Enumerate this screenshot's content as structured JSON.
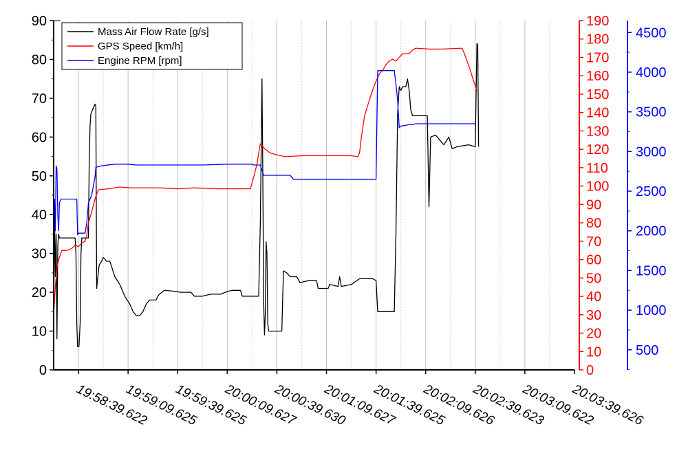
{
  "chart_data": {
    "type": "line",
    "title": "",
    "xlabel": "",
    "x_tick_labels": [
      "19:58:39.622",
      "19:59:09.625",
      "19:59:39.625",
      "20:00:09.627",
      "20:00:39.630",
      "20:01:09.627",
      "20:01:39.625",
      "20:02:09.626",
      "20:02:39.623",
      "20:03:09.622",
      "20:03:39.626"
    ],
    "x_range_seconds": [
      -15,
      300
    ],
    "grid": "vertical dashed lines at every 15 s",
    "legend_position": "top-left",
    "axes": [
      {
        "name": "left",
        "color": "#000000",
        "ylim": [
          0,
          90
        ],
        "ticks": [
          "0",
          "10",
          "20",
          "30",
          "40",
          "50",
          "60",
          "70",
          "80",
          "90"
        ]
      },
      {
        "name": "right-red",
        "color": "#ff0000",
        "ylim": [
          0,
          190
        ],
        "ticks": [
          "0",
          "10",
          "20",
          "30",
          "40",
          "50",
          "60",
          "70",
          "80",
          "90",
          "100",
          "110",
          "120",
          "130",
          "140",
          "150",
          "160",
          "170",
          "180",
          "190"
        ]
      },
      {
        "name": "right-blue",
        "color": "#0000ff",
        "ylim": [
          247,
          4650
        ],
        "ticks": [
          "500",
          "1000",
          "1500",
          "2000",
          "2500",
          "3000",
          "3500",
          "4000",
          "4500"
        ]
      }
    ],
    "series": [
      {
        "name": "Mass Air Flow Rate [g/s]",
        "color": "#000000",
        "axis": "left",
        "points": [
          [
            -15,
            10
          ],
          [
            -14.5,
            41
          ],
          [
            -14,
            24
          ],
          [
            -13.5,
            35
          ],
          [
            -13,
            8
          ],
          [
            -12.5,
            32
          ],
          [
            -12,
            35
          ],
          [
            -11.5,
            34
          ],
          [
            -5,
            34
          ],
          [
            -3,
            34
          ],
          [
            -2,
            34
          ],
          [
            -1.5,
            30
          ],
          [
            -1,
            12
          ],
          [
            -0.5,
            6
          ],
          [
            0.3,
            6
          ],
          [
            1,
            12
          ],
          [
            1.5,
            30
          ],
          [
            2,
            34
          ],
          [
            5,
            34
          ],
          [
            6,
            34
          ],
          [
            6.5,
            54
          ],
          [
            7,
            63
          ],
          [
            7.5,
            66
          ],
          [
            8.5,
            67
          ],
          [
            10,
            68.5
          ],
          [
            10.5,
            68
          ],
          [
            11,
            21
          ],
          [
            12.5,
            27
          ],
          [
            14,
            28
          ],
          [
            15,
            29
          ],
          [
            17,
            28
          ],
          [
            19,
            28
          ],
          [
            22,
            24
          ],
          [
            25,
            22
          ],
          [
            28,
            19
          ],
          [
            31,
            17
          ],
          [
            33,
            15
          ],
          [
            35,
            14
          ],
          [
            37,
            14
          ],
          [
            39,
            15
          ],
          [
            41,
            17
          ],
          [
            43,
            18
          ],
          [
            45,
            18
          ],
          [
            47,
            18
          ],
          [
            48,
            19
          ],
          [
            49,
            19.5
          ],
          [
            52,
            20.5
          ],
          [
            57,
            20.3
          ],
          [
            62,
            20
          ],
          [
            68,
            20
          ],
          [
            70,
            19
          ],
          [
            75,
            19
          ],
          [
            80,
            19.5
          ],
          [
            86,
            19.5
          ],
          [
            90,
            20.2
          ],
          [
            93,
            20.5
          ],
          [
            98,
            20.5
          ],
          [
            99,
            19
          ],
          [
            109,
            19
          ],
          [
            110,
            38
          ],
          [
            111,
            75
          ],
          [
            111.5,
            50
          ],
          [
            112,
            18
          ],
          [
            112.5,
            9
          ],
          [
            113,
            14
          ],
          [
            113.5,
            33
          ],
          [
            114,
            30
          ],
          [
            114.5,
            12
          ],
          [
            115,
            10
          ],
          [
            123,
            10
          ],
          [
            124,
            25.5
          ],
          [
            126,
            25
          ],
          [
            128,
            24
          ],
          [
            132,
            24
          ],
          [
            134,
            22.5
          ],
          [
            139,
            23
          ],
          [
            144,
            23
          ],
          [
            145,
            21
          ],
          [
            151,
            21
          ],
          [
            152,
            22
          ],
          [
            157,
            21.5
          ],
          [
            158,
            24
          ],
          [
            159,
            21.5
          ],
          [
            165,
            22
          ],
          [
            170,
            23.5
          ],
          [
            178,
            23.5
          ],
          [
            180,
            23
          ],
          [
            181,
            15
          ],
          [
            191,
            15
          ],
          [
            192,
            35
          ],
          [
            193,
            66
          ],
          [
            194,
            73
          ],
          [
            195,
            72
          ],
          [
            196,
            73
          ],
          [
            198,
            73
          ],
          [
            199,
            75
          ],
          [
            200,
            72
          ],
          [
            201,
            67
          ],
          [
            202,
            65.5
          ],
          [
            211,
            65.5
          ],
          [
            212,
            42
          ],
          [
            213,
            60
          ],
          [
            216,
            60.5
          ],
          [
            221,
            58
          ],
          [
            224,
            60
          ],
          [
            226,
            57
          ],
          [
            229,
            57.5
          ],
          [
            236,
            58
          ],
          [
            240,
            57.5
          ],
          [
            241,
            84
          ],
          [
            241.5,
            84
          ],
          [
            242,
            57.5
          ]
        ]
      },
      {
        "name": "GPS Speed [km/h]",
        "color": "#ff0000",
        "axis": "right-red",
        "points": [
          [
            -15,
            30
          ],
          [
            -14,
            45
          ],
          [
            -13,
            55
          ],
          [
            -12,
            60
          ],
          [
            -10,
            65
          ],
          [
            -7,
            65
          ],
          [
            -4,
            66
          ],
          [
            -2,
            68
          ],
          [
            0,
            67
          ],
          [
            2,
            69
          ],
          [
            4,
            70
          ],
          [
            5,
            73
          ],
          [
            6,
            80
          ],
          [
            8,
            86
          ],
          [
            10,
            93
          ],
          [
            12,
            98
          ],
          [
            18,
            98.5
          ],
          [
            25,
            99.5
          ],
          [
            32,
            99
          ],
          [
            40,
            99
          ],
          [
            50,
            99
          ],
          [
            60,
            98.5
          ],
          [
            70,
            99
          ],
          [
            85,
            98.5
          ],
          [
            100,
            98.5
          ],
          [
            104,
            98.5
          ],
          [
            106,
            105
          ],
          [
            108,
            112
          ],
          [
            109,
            118
          ],
          [
            110,
            123
          ],
          [
            111,
            122
          ],
          [
            113,
            120
          ],
          [
            116,
            118
          ],
          [
            120,
            117
          ],
          [
            125,
            116
          ],
          [
            135,
            116.5
          ],
          [
            145,
            116.5
          ],
          [
            155,
            116.5
          ],
          [
            165,
            116.5
          ],
          [
            169,
            116
          ],
          [
            170,
            118
          ],
          [
            171,
            126
          ],
          [
            173,
            138
          ],
          [
            176,
            147
          ],
          [
            179,
            155
          ],
          [
            182,
            161
          ],
          [
            184,
            163
          ],
          [
            186,
            166
          ],
          [
            188,
            168
          ],
          [
            190,
            169
          ],
          [
            192,
            168
          ],
          [
            194,
            170
          ],
          [
            196,
            172
          ],
          [
            198,
            172
          ],
          [
            200,
            172
          ],
          [
            202,
            174
          ],
          [
            204,
            175
          ],
          [
            212,
            174.5
          ],
          [
            220,
            174.5
          ],
          [
            232,
            175
          ],
          [
            233,
            173
          ],
          [
            235,
            168
          ],
          [
            237,
            163
          ],
          [
            239,
            157
          ],
          [
            241,
            152
          ]
        ]
      },
      {
        "name": "Engine RPM [rpm]",
        "color": "#0000ff",
        "axis": "right-blue",
        "points": [
          [
            -15,
            2180
          ],
          [
            -14.5,
            2400
          ],
          [
            -14,
            2000
          ],
          [
            -13.5,
            2820
          ],
          [
            -13,
            2780
          ],
          [
            -12.5,
            2200
          ],
          [
            -12,
            2000
          ],
          [
            -11.5,
            2350
          ],
          [
            -11,
            2380
          ],
          [
            -10.5,
            2400
          ],
          [
            -2,
            2400
          ],
          [
            -1,
            2400
          ],
          [
            -0.5,
            1950
          ],
          [
            0,
            1970
          ],
          [
            4,
            1970
          ],
          [
            5,
            2100
          ],
          [
            6,
            2350
          ],
          [
            8,
            2450
          ],
          [
            10,
            2680
          ],
          [
            10.5,
            2800
          ],
          [
            14,
            2820
          ],
          [
            22,
            2840
          ],
          [
            30,
            2840
          ],
          [
            35,
            2830
          ],
          [
            45,
            2830
          ],
          [
            60,
            2830
          ],
          [
            75,
            2830
          ],
          [
            90,
            2840
          ],
          [
            100,
            2840
          ],
          [
            105,
            2840
          ],
          [
            106,
            2830
          ],
          [
            110,
            2830
          ],
          [
            112,
            2700
          ],
          [
            115,
            2700
          ],
          [
            128,
            2700
          ],
          [
            130,
            2650
          ],
          [
            145,
            2650
          ],
          [
            160,
            2650
          ],
          [
            170,
            2650
          ],
          [
            180,
            2650
          ],
          [
            181,
            4020
          ],
          [
            190,
            4020
          ],
          [
            191,
            4020
          ],
          [
            192,
            3850
          ],
          [
            193,
            3650
          ],
          [
            194,
            3300
          ],
          [
            195,
            3320
          ],
          [
            198,
            3330
          ],
          [
            200,
            3340
          ],
          [
            202,
            3340
          ],
          [
            204,
            3350
          ],
          [
            210,
            3350
          ],
          [
            220,
            3350
          ],
          [
            230,
            3350
          ],
          [
            240,
            3350
          ]
        ]
      }
    ]
  }
}
